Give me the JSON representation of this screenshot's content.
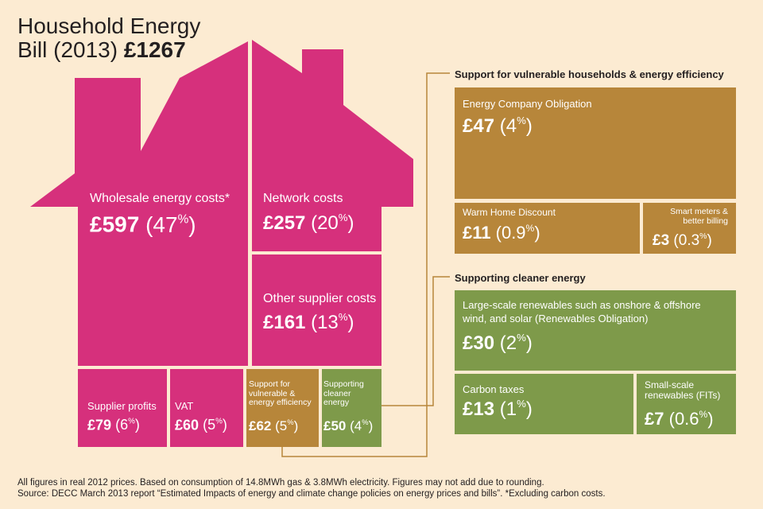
{
  "title": {
    "line1": "Household Energy",
    "line2": "Bill (2013)",
    "total": "£1267"
  },
  "colors": {
    "background": "#fcebd2",
    "house_pink": "#d6307c",
    "gold": "#b7863a",
    "green": "#7e9a4a",
    "connector": "#b7863a"
  },
  "house": {
    "wholesale": {
      "label": "Wholesale energy costs*",
      "amount": "£597",
      "pct": "47",
      "pct_sign": "%"
    },
    "network": {
      "label": "Network costs",
      "amount": "£257",
      "pct": "20",
      "pct_sign": "%"
    },
    "other_supplier": {
      "label": "Other supplier costs",
      "amount": "£161",
      "pct": "13",
      "pct_sign": "%"
    },
    "supplier_profits": {
      "label": "Supplier profits",
      "amount": "£79",
      "pct": "6",
      "pct_sign": "%"
    },
    "vat": {
      "label": "VAT",
      "amount": "£60",
      "pct": "5",
      "pct_sign": "%"
    },
    "support_vulnerable": {
      "label": "Support for vulnerable & energy efficiency",
      "amount": "£62",
      "pct": "5",
      "pct_sign": "%"
    },
    "supporting_cleaner": {
      "label": "Supporting cleaner energy",
      "amount": "£50",
      "pct": "4",
      "pct_sign": "%"
    }
  },
  "vulnerable_section": {
    "heading": "Support for vulnerable households & energy efficiency",
    "eco": {
      "label": "Energy Company Obligation",
      "amount": "£47",
      "pct": "4",
      "pct_sign": "%"
    },
    "warm_home": {
      "label": "Warm Home Discount",
      "amount": "£11",
      "pct": "0.9",
      "pct_sign": "%"
    },
    "smart_meters": {
      "label_line1": "Smart meters &",
      "label_line2": "better billing",
      "amount": "£3",
      "pct": "0.3",
      "pct_sign": "%"
    }
  },
  "cleaner_section": {
    "heading": "Supporting cleaner energy",
    "large_scale": {
      "label": "Large-scale renewables such as onshore & offshore wind, and solar (Renewables Obligation)",
      "amount": "£30",
      "pct": "2",
      "pct_sign": "%"
    },
    "carbon_taxes": {
      "label": "Carbon taxes",
      "amount": "£13",
      "pct": "1",
      "pct_sign": "%"
    },
    "small_scale": {
      "label_line1": "Small-scale",
      "label_line2": "renewables (FITs)",
      "amount": "£7",
      "pct": "0.6",
      "pct_sign": "%"
    }
  },
  "footnotes": {
    "line1": "All figures in real 2012 prices. Based on consumption of 14.8MWh gas & 3.8MWh electricity. Figures may not add due to rounding.",
    "line2": "Source: DECC March 2013 report “Estimated Impacts of energy and climate change policies on energy prices and bills”. *Excluding carbon costs."
  }
}
